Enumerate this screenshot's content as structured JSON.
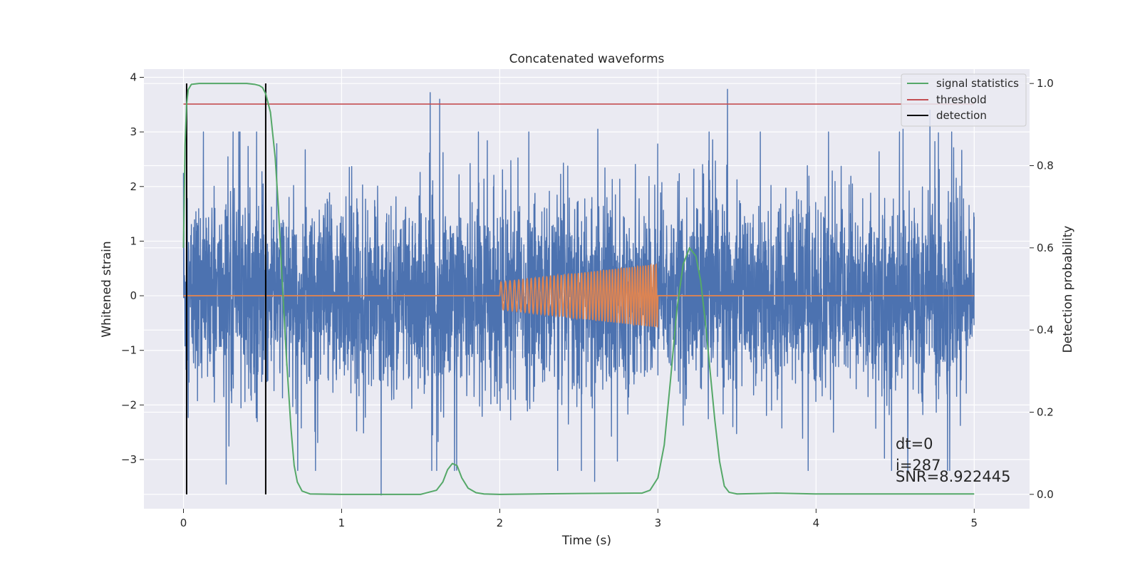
{
  "chart_data": {
    "type": "line",
    "title": "Concatenated waveforms",
    "xlabel": "Time (s)",
    "ylabel_left": "Whitened strain",
    "ylabel_right": "Detection probability",
    "xlim": [
      -0.25,
      5.35
    ],
    "ylim_left": [
      -3.9,
      4.15
    ],
    "ylim_right": [
      -0.035,
      1.035
    ],
    "x_ticks": [
      0,
      1,
      2,
      3,
      4,
      5
    ],
    "y_ticks_left": [
      -3,
      -2,
      -1,
      0,
      1,
      2,
      3,
      4
    ],
    "y_ticks_right": [
      0.0,
      0.2,
      0.4,
      0.6,
      0.8,
      1.0
    ],
    "x_tick_labels": [
      "0",
      "1",
      "2",
      "3",
      "4",
      "5"
    ],
    "y_tick_labels_left": [
      "−3",
      "−2",
      "−1",
      "0",
      "1",
      "2",
      "3",
      "4"
    ],
    "y_tick_labels_right": [
      "0.0",
      "0.2",
      "0.4",
      "0.6",
      "0.8",
      "1.0"
    ],
    "grid": true,
    "legend_position": "top-right",
    "series": [
      {
        "name": "whitened strain",
        "axis": "left",
        "color": "#4c72b0",
        "description": "noisy whitened strain, amplitude about ±2 with peaks near ±3.7, x from 0 to 5",
        "x_range": [
          0,
          5
        ],
        "peaks": [
          [
            0.0,
            2.25
          ],
          [
            0.35,
            3.0
          ],
          [
            1.25,
            -3.65
          ],
          [
            1.56,
            3.72
          ],
          [
            1.62,
            3.6
          ],
          [
            2.62,
            3.05
          ],
          [
            3.44,
            3.78
          ],
          [
            4.55,
            3.05
          ],
          [
            4.72,
            3.4
          ],
          [
            0.27,
            -3.45
          ],
          [
            2.6,
            -3.4
          ],
          [
            3.95,
            -3.2
          ]
        ]
      },
      {
        "name": "injected signal",
        "axis": "left",
        "color": "#dd8452",
        "description": "zero everywhere except a chirp between x=2.0 and x=3.0 with amplitude growing from about 0.25 to 0.58",
        "chirp": {
          "x_start": 2.0,
          "x_end": 3.0,
          "amp_start": 0.25,
          "amp_end": 0.58,
          "cycles": 48
        }
      },
      {
        "name": "signal statistics",
        "axis": "right",
        "color": "#55a868",
        "x": [
          0,
          0.01,
          0.02,
          0.03,
          0.05,
          0.1,
          0.2,
          0.3,
          0.4,
          0.45,
          0.48,
          0.5,
          0.52,
          0.55,
          0.58,
          0.6,
          0.62,
          0.65,
          0.68,
          0.7,
          0.72,
          0.75,
          0.8,
          1.0,
          1.5,
          1.6,
          1.64,
          1.67,
          1.7,
          1.73,
          1.76,
          1.8,
          1.85,
          1.9,
          2.0,
          2.5,
          2.9,
          2.95,
          3.0,
          3.04,
          3.08,
          3.12,
          3.16,
          3.2,
          3.24,
          3.27,
          3.3,
          3.33,
          3.36,
          3.39,
          3.42,
          3.45,
          3.5,
          3.75,
          4.0,
          4.5,
          5.0
        ],
        "y": [
          0.6,
          0.85,
          0.95,
          0.985,
          0.998,
          1.0,
          1.0,
          1.0,
          1.0,
          0.998,
          0.995,
          0.99,
          0.975,
          0.93,
          0.82,
          0.7,
          0.55,
          0.34,
          0.16,
          0.07,
          0.03,
          0.008,
          0.001,
          0.0,
          0.0,
          0.01,
          0.03,
          0.06,
          0.075,
          0.07,
          0.04,
          0.015,
          0.004,
          0.001,
          0.0,
          0.002,
          0.003,
          0.01,
          0.04,
          0.12,
          0.28,
          0.45,
          0.56,
          0.6,
          0.58,
          0.52,
          0.42,
          0.3,
          0.18,
          0.08,
          0.02,
          0.005,
          0.001,
          0.003,
          0.001,
          0.001,
          0.001
        ]
      },
      {
        "name": "threshold",
        "axis": "right",
        "color": "#c44e52",
        "x": [
          0,
          5
        ],
        "y": [
          0.95,
          0.95
        ]
      },
      {
        "name": "detection",
        "axis": "right",
        "color": "#000000",
        "x_positions": [
          0.02,
          0.52
        ],
        "y_range": [
          0.0,
          1.0
        ]
      }
    ],
    "legend": [
      "signal statistics",
      "threshold",
      "detection"
    ],
    "annotations": [
      "dt=0",
      "i=287",
      "SNR=8.922445"
    ]
  }
}
